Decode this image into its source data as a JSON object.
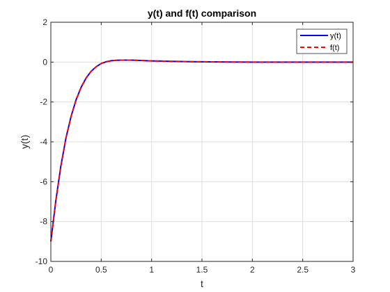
{
  "chart_data": {
    "type": "line",
    "title": "y(t) and f(t) comparison",
    "xlabel": "t",
    "ylabel": "y(t)",
    "xlim": [
      0,
      3
    ],
    "ylim": [
      -10,
      2
    ],
    "xticks": [
      0,
      0.5,
      1,
      1.5,
      2,
      2.5,
      3
    ],
    "xtick_labels": [
      "0",
      "0.5",
      "1",
      "1.5",
      "2",
      "2.5",
      "3"
    ],
    "yticks": [
      -10,
      -8,
      -6,
      -4,
      -2,
      0,
      2
    ],
    "ytick_labels": [
      "-10",
      "-8",
      "-6",
      "-4",
      "-2",
      "0",
      "2"
    ],
    "grid": true,
    "legend_position": "top-right",
    "series": [
      {
        "name": "y(t)",
        "color": "#0000ff",
        "style": "solid",
        "x": [
          0,
          0.05,
          0.1,
          0.15,
          0.2,
          0.25,
          0.3,
          0.35,
          0.4,
          0.45,
          0.5,
          0.55,
          0.6,
          0.65,
          0.7,
          0.75,
          0.8,
          0.85,
          0.9,
          0.95,
          1.0,
          1.1,
          1.2,
          1.3,
          1.4,
          1.5,
          1.6,
          1.8,
          2.0,
          2.25,
          2.5,
          2.75,
          3.0
        ],
        "y": [
          -9.0,
          -6.94,
          -5.2,
          -3.81,
          -2.74,
          -1.9,
          -1.27,
          -0.8,
          -0.46,
          -0.23,
          -0.07,
          0.02,
          0.07,
          0.09,
          0.1,
          0.1,
          0.1,
          0.09,
          0.08,
          0.07,
          0.06,
          0.05,
          0.04,
          0.03,
          0.02,
          0.015,
          0.01,
          0.005,
          0.0,
          0.0,
          0.0,
          0.0,
          0.0
        ]
      },
      {
        "name": "f(t)",
        "color": "#ff0000",
        "style": "dashed",
        "x": [
          0,
          0.05,
          0.1,
          0.15,
          0.2,
          0.25,
          0.3,
          0.35,
          0.4,
          0.45,
          0.5,
          0.55,
          0.6,
          0.65,
          0.7,
          0.75,
          0.8,
          0.85,
          0.9,
          0.95,
          1.0,
          1.1,
          1.2,
          1.3,
          1.4,
          1.5,
          1.6,
          1.8,
          2.0,
          2.25,
          2.5,
          2.75,
          3.0
        ],
        "y": [
          -9.0,
          -6.94,
          -5.2,
          -3.81,
          -2.74,
          -1.9,
          -1.27,
          -0.8,
          -0.46,
          -0.23,
          -0.07,
          0.02,
          0.07,
          0.09,
          0.1,
          0.1,
          0.1,
          0.09,
          0.08,
          0.07,
          0.06,
          0.05,
          0.04,
          0.03,
          0.02,
          0.015,
          0.01,
          0.005,
          0.0,
          0.0,
          0.0,
          0.0,
          0.0
        ]
      }
    ]
  }
}
